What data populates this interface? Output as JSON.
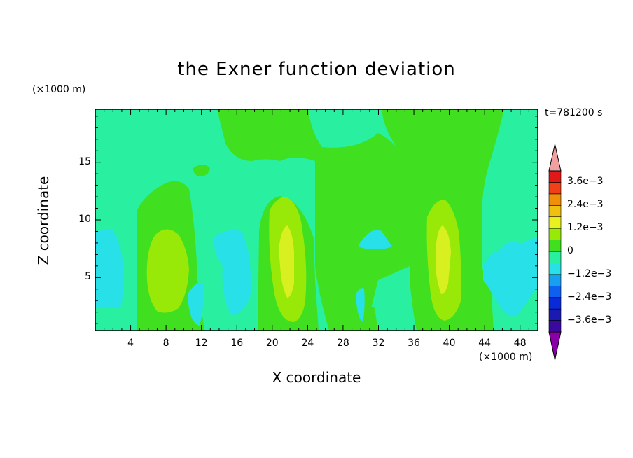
{
  "chart_data": {
    "type": "heatmap",
    "title": "the Exner function deviation",
    "xlabel": "X coordinate",
    "ylabel": "Z coordinate",
    "x_unit": "(×1000 m)",
    "y_unit": "(×1000 m)",
    "time_label": "t=781200 s",
    "xlim": [
      0,
      50
    ],
    "ylim": [
      0.4,
      19.6
    ],
    "x_ticks": [
      "4",
      "8",
      "12",
      "16",
      "20",
      "24",
      "28",
      "32",
      "36",
      "40",
      "44",
      "48"
    ],
    "y_ticks": [
      "5",
      "10",
      "15"
    ],
    "colorbar": {
      "labels": [
        "3.6e−3",
        "2.4e−3",
        "1.2e−3",
        "0",
        "−1.2e−3",
        "−2.4e−3",
        "−3.6e−3"
      ],
      "levels": [
        -0.0042,
        -0.0036,
        -0.003,
        -0.0024,
        -0.0018,
        -0.0012,
        -0.0006,
        0,
        0.0006,
        0.0012,
        0.0018,
        0.0024,
        0.003,
        0.0036,
        0.0042
      ],
      "colors": [
        "#8a00a8",
        "#3a0aa0",
        "#1a1ab0",
        "#0a2ad8",
        "#1060f0",
        "#18a0f0",
        "#28e0e8",
        "#28f0a0",
        "#40e020",
        "#98e808",
        "#e8f020",
        "#f0c010",
        "#f09008",
        "#f04018",
        "#e01818",
        "#f0a0a0"
      ]
    },
    "fields": {
      "background": "#28f0a0",
      "green_bands": [
        {
          "x_center": 9.5,
          "x_halfwidth": 4.5,
          "z_top": 13.5
        },
        {
          "x_center": 22,
          "x_halfwidth": 4.5,
          "z_top": 11.5
        },
        {
          "x_center": 29,
          "x_halfwidth": 3,
          "z_top": 19.6
        },
        {
          "x_center": 40,
          "x_halfwidth": 4,
          "z_top": 12
        },
        {
          "x_center": 42,
          "x_halfwidth": 4,
          "z_top": 19.6
        }
      ],
      "yellow_cores": [
        {
          "x_center": 8,
          "z_low": 1.5,
          "z_high": 9,
          "value": 0.0009
        },
        {
          "x_center": 22,
          "z_low": 1.5,
          "z_high": 10.5,
          "value": 0.0012
        },
        {
          "x_center": 39.5,
          "z_low": 1.5,
          "z_high": 11,
          "value": 0.0012
        }
      ],
      "cyan_patches": [
        {
          "x_center": 2,
          "z_center": 6,
          "value": -0.0006
        },
        {
          "x_center": 16,
          "z_center": 6,
          "value": -0.0006
        },
        {
          "x_center": 31.5,
          "z_center": 8.5,
          "value": -0.0006
        },
        {
          "x_center": 46,
          "z_center": 6,
          "value": -0.0006
        }
      ]
    }
  }
}
